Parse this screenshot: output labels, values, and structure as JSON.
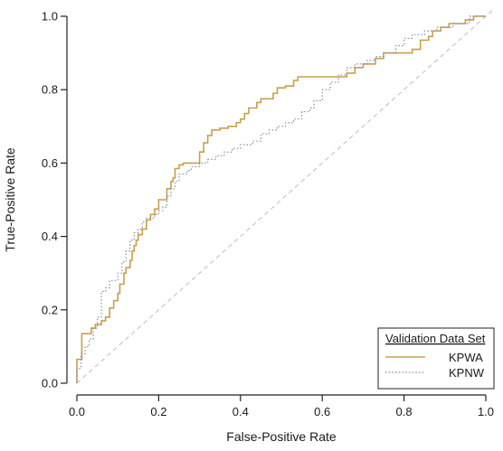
{
  "chart_data": {
    "type": "line",
    "title": "",
    "xlabel": "False-Positive Rate",
    "ylabel": "True-Positive Rate",
    "xlim": [
      0.0,
      1.0
    ],
    "ylim": [
      0.0,
      1.0
    ],
    "x_ticks": [
      "0.0",
      "0.2",
      "0.4",
      "0.6",
      "0.8",
      "1.0"
    ],
    "y_ticks": [
      "0.0",
      "0.2",
      "0.4",
      "0.6",
      "0.8",
      "1.0"
    ],
    "grid": false,
    "reference_line": {
      "from": [
        0,
        0
      ],
      "to": [
        1,
        1
      ],
      "style": "dashed",
      "color": "#bdbdbd"
    },
    "legend": {
      "title": "Validation Data Set",
      "placement": "bottom-right",
      "entries": [
        {
          "name": "KPWA",
          "color": "#c8a04a",
          "style": "solid"
        },
        {
          "name": "KPNW",
          "color": "#8a8ab0",
          "style": "dotted"
        }
      ]
    },
    "series": [
      {
        "name": "KPWA",
        "color": "#c8a04a",
        "style": "solid",
        "points": [
          [
            0.0,
            0.0
          ],
          [
            0.0,
            0.065
          ],
          [
            0.012,
            0.065
          ],
          [
            0.012,
            0.135
          ],
          [
            0.035,
            0.135
          ],
          [
            0.035,
            0.15
          ],
          [
            0.045,
            0.15
          ],
          [
            0.045,
            0.16
          ],
          [
            0.06,
            0.16
          ],
          [
            0.06,
            0.17
          ],
          [
            0.07,
            0.17
          ],
          [
            0.07,
            0.18
          ],
          [
            0.08,
            0.18
          ],
          [
            0.08,
            0.205
          ],
          [
            0.09,
            0.205
          ],
          [
            0.09,
            0.225
          ],
          [
            0.1,
            0.225
          ],
          [
            0.1,
            0.245
          ],
          [
            0.105,
            0.245
          ],
          [
            0.105,
            0.27
          ],
          [
            0.115,
            0.27
          ],
          [
            0.115,
            0.3
          ],
          [
            0.12,
            0.3
          ],
          [
            0.12,
            0.315
          ],
          [
            0.13,
            0.315
          ],
          [
            0.13,
            0.335
          ],
          [
            0.135,
            0.335
          ],
          [
            0.135,
            0.36
          ],
          [
            0.14,
            0.36
          ],
          [
            0.14,
            0.375
          ],
          [
            0.145,
            0.375
          ],
          [
            0.145,
            0.39
          ],
          [
            0.15,
            0.39
          ],
          [
            0.15,
            0.405
          ],
          [
            0.16,
            0.405
          ],
          [
            0.16,
            0.42
          ],
          [
            0.17,
            0.42
          ],
          [
            0.17,
            0.445
          ],
          [
            0.18,
            0.445
          ],
          [
            0.18,
            0.46
          ],
          [
            0.19,
            0.46
          ],
          [
            0.19,
            0.475
          ],
          [
            0.2,
            0.475
          ],
          [
            0.2,
            0.5
          ],
          [
            0.22,
            0.5
          ],
          [
            0.22,
            0.53
          ],
          [
            0.23,
            0.53
          ],
          [
            0.23,
            0.55
          ],
          [
            0.235,
            0.55
          ],
          [
            0.235,
            0.56
          ],
          [
            0.24,
            0.56
          ],
          [
            0.24,
            0.585
          ],
          [
            0.25,
            0.585
          ],
          [
            0.25,
            0.595
          ],
          [
            0.26,
            0.595
          ],
          [
            0.26,
            0.6
          ],
          [
            0.3,
            0.6
          ],
          [
            0.3,
            0.63
          ],
          [
            0.31,
            0.63
          ],
          [
            0.31,
            0.655
          ],
          [
            0.32,
            0.655
          ],
          [
            0.32,
            0.675
          ],
          [
            0.33,
            0.675
          ],
          [
            0.33,
            0.69
          ],
          [
            0.35,
            0.69
          ],
          [
            0.35,
            0.695
          ],
          [
            0.37,
            0.695
          ],
          [
            0.37,
            0.7
          ],
          [
            0.39,
            0.7
          ],
          [
            0.39,
            0.71
          ],
          [
            0.4,
            0.71
          ],
          [
            0.4,
            0.72
          ],
          [
            0.41,
            0.72
          ],
          [
            0.41,
            0.735
          ],
          [
            0.42,
            0.735
          ],
          [
            0.42,
            0.75
          ],
          [
            0.44,
            0.75
          ],
          [
            0.44,
            0.765
          ],
          [
            0.45,
            0.765
          ],
          [
            0.45,
            0.775
          ],
          [
            0.48,
            0.775
          ],
          [
            0.48,
            0.79
          ],
          [
            0.49,
            0.79
          ],
          [
            0.49,
            0.805
          ],
          [
            0.51,
            0.805
          ],
          [
            0.51,
            0.81
          ],
          [
            0.53,
            0.81
          ],
          [
            0.53,
            0.825
          ],
          [
            0.54,
            0.825
          ],
          [
            0.54,
            0.835
          ],
          [
            0.66,
            0.835
          ],
          [
            0.66,
            0.845
          ],
          [
            0.68,
            0.845
          ],
          [
            0.68,
            0.86
          ],
          [
            0.7,
            0.86
          ],
          [
            0.7,
            0.87
          ],
          [
            0.73,
            0.87
          ],
          [
            0.73,
            0.885
          ],
          [
            0.75,
            0.885
          ],
          [
            0.75,
            0.9
          ],
          [
            0.82,
            0.9
          ],
          [
            0.82,
            0.91
          ],
          [
            0.84,
            0.91
          ],
          [
            0.84,
            0.935
          ],
          [
            0.86,
            0.935
          ],
          [
            0.86,
            0.945
          ],
          [
            0.87,
            0.945
          ],
          [
            0.87,
            0.96
          ],
          [
            0.89,
            0.96
          ],
          [
            0.89,
            0.97
          ],
          [
            0.91,
            0.97
          ],
          [
            0.91,
            0.98
          ],
          [
            0.95,
            0.98
          ],
          [
            0.95,
            0.99
          ],
          [
            0.97,
            0.99
          ],
          [
            0.97,
            1.0
          ],
          [
            1.0,
            1.0
          ]
        ]
      },
      {
        "name": "KPNW",
        "color": "#8a8ab0",
        "style": "dotted",
        "points": [
          [
            0.0,
            0.0
          ],
          [
            0.0,
            0.04
          ],
          [
            0.01,
            0.04
          ],
          [
            0.01,
            0.08
          ],
          [
            0.02,
            0.08
          ],
          [
            0.02,
            0.1
          ],
          [
            0.03,
            0.1
          ],
          [
            0.03,
            0.12
          ],
          [
            0.04,
            0.12
          ],
          [
            0.04,
            0.15
          ],
          [
            0.05,
            0.15
          ],
          [
            0.05,
            0.18
          ],
          [
            0.06,
            0.18
          ],
          [
            0.06,
            0.25
          ],
          [
            0.07,
            0.25
          ],
          [
            0.07,
            0.26
          ],
          [
            0.08,
            0.26
          ],
          [
            0.08,
            0.28
          ],
          [
            0.1,
            0.28
          ],
          [
            0.1,
            0.3
          ],
          [
            0.11,
            0.3
          ],
          [
            0.11,
            0.33
          ],
          [
            0.12,
            0.33
          ],
          [
            0.12,
            0.36
          ],
          [
            0.13,
            0.36
          ],
          [
            0.13,
            0.39
          ],
          [
            0.14,
            0.39
          ],
          [
            0.14,
            0.41
          ],
          [
            0.15,
            0.41
          ],
          [
            0.15,
            0.42
          ],
          [
            0.16,
            0.42
          ],
          [
            0.16,
            0.44
          ],
          [
            0.17,
            0.44
          ],
          [
            0.17,
            0.45
          ],
          [
            0.19,
            0.45
          ],
          [
            0.19,
            0.46
          ],
          [
            0.2,
            0.46
          ],
          [
            0.2,
            0.47
          ],
          [
            0.21,
            0.47
          ],
          [
            0.21,
            0.48
          ],
          [
            0.22,
            0.48
          ],
          [
            0.22,
            0.51
          ],
          [
            0.23,
            0.51
          ],
          [
            0.23,
            0.53
          ],
          [
            0.24,
            0.53
          ],
          [
            0.24,
            0.55
          ],
          [
            0.25,
            0.55
          ],
          [
            0.25,
            0.57
          ],
          [
            0.27,
            0.57
          ],
          [
            0.27,
            0.58
          ],
          [
            0.28,
            0.58
          ],
          [
            0.28,
            0.59
          ],
          [
            0.3,
            0.59
          ],
          [
            0.3,
            0.6
          ],
          [
            0.32,
            0.6
          ],
          [
            0.32,
            0.61
          ],
          [
            0.34,
            0.61
          ],
          [
            0.34,
            0.62
          ],
          [
            0.36,
            0.62
          ],
          [
            0.36,
            0.63
          ],
          [
            0.38,
            0.63
          ],
          [
            0.38,
            0.64
          ],
          [
            0.4,
            0.64
          ],
          [
            0.4,
            0.65
          ],
          [
            0.43,
            0.65
          ],
          [
            0.43,
            0.66
          ],
          [
            0.45,
            0.66
          ],
          [
            0.45,
            0.68
          ],
          [
            0.47,
            0.68
          ],
          [
            0.47,
            0.69
          ],
          [
            0.49,
            0.69
          ],
          [
            0.49,
            0.7
          ],
          [
            0.51,
            0.7
          ],
          [
            0.51,
            0.71
          ],
          [
            0.53,
            0.71
          ],
          [
            0.53,
            0.72
          ],
          [
            0.55,
            0.72
          ],
          [
            0.55,
            0.74
          ],
          [
            0.57,
            0.74
          ],
          [
            0.57,
            0.75
          ],
          [
            0.58,
            0.75
          ],
          [
            0.58,
            0.77
          ],
          [
            0.6,
            0.77
          ],
          [
            0.6,
            0.8
          ],
          [
            0.62,
            0.8
          ],
          [
            0.62,
            0.82
          ],
          [
            0.64,
            0.82
          ],
          [
            0.64,
            0.84
          ],
          [
            0.66,
            0.84
          ],
          [
            0.66,
            0.86
          ],
          [
            0.68,
            0.86
          ],
          [
            0.68,
            0.87
          ],
          [
            0.71,
            0.87
          ],
          [
            0.71,
            0.88
          ],
          [
            0.73,
            0.88
          ],
          [
            0.73,
            0.89
          ],
          [
            0.75,
            0.89
          ],
          [
            0.75,
            0.9
          ],
          [
            0.78,
            0.9
          ],
          [
            0.78,
            0.92
          ],
          [
            0.8,
            0.92
          ],
          [
            0.8,
            0.94
          ],
          [
            0.82,
            0.94
          ],
          [
            0.82,
            0.95
          ],
          [
            0.85,
            0.95
          ],
          [
            0.85,
            0.96
          ],
          [
            0.88,
            0.96
          ],
          [
            0.88,
            0.97
          ],
          [
            0.92,
            0.97
          ],
          [
            0.92,
            0.98
          ],
          [
            0.96,
            0.98
          ],
          [
            0.96,
            1.0
          ],
          [
            1.0,
            1.0
          ]
        ]
      }
    ]
  }
}
